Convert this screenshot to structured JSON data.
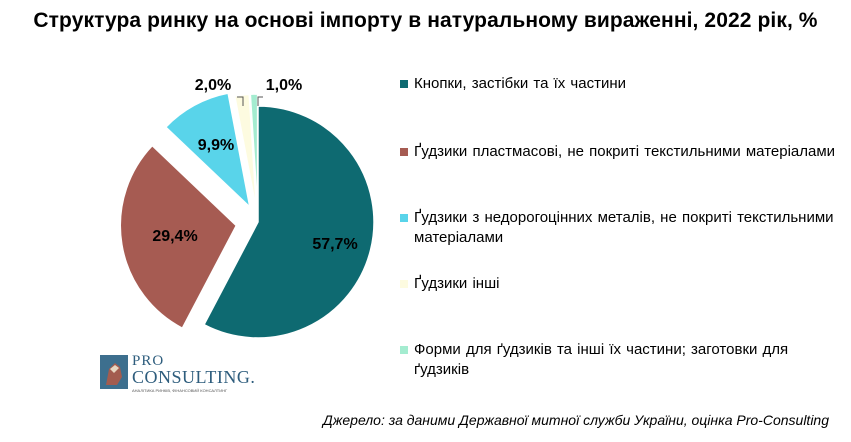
{
  "chart_data": {
    "type": "pie",
    "title": "Структура ринку на основі імпорту в натуральному вираженні, 2022 рік, %",
    "slices": [
      {
        "name": "Кнопки, застібки та їх  частини",
        "value": 57.7,
        "label": "57,7%",
        "color": "#0e6a71"
      },
      {
        "name": "Ґудзики пластмасові, не покриті текстильними  матеріалами",
        "value": 29.4,
        "label": "29,4%",
        "color": "#a65b52"
      },
      {
        "name": "Ґудзики з недорогоцінних металів, не покриті текстильними  матеріалами",
        "value": 9.9,
        "label": "9,9%",
        "color": "#59d4ea"
      },
      {
        "name": "Ґудзики інші",
        "value": 2.0,
        "label": "2,0%",
        "color": "#fdfbe0"
      },
      {
        "name": "Форми для ґудзиків та інші  їх частини; заготовки для ґудзиків",
        "value": 1.0,
        "label": "1,0%",
        "color": "#a4ecd0"
      }
    ],
    "legend_position": "right"
  },
  "logo": {
    "line1": "PRO",
    "line2": "CONSULTING.",
    "tagline": "АНАЛІТИКА РИНКІВ, ФІНАНСОВИЙ КОНСАЛТИНГ"
  },
  "source": "Джерело: за даними Державної митної служби України, оцінка Pro-Consulting"
}
